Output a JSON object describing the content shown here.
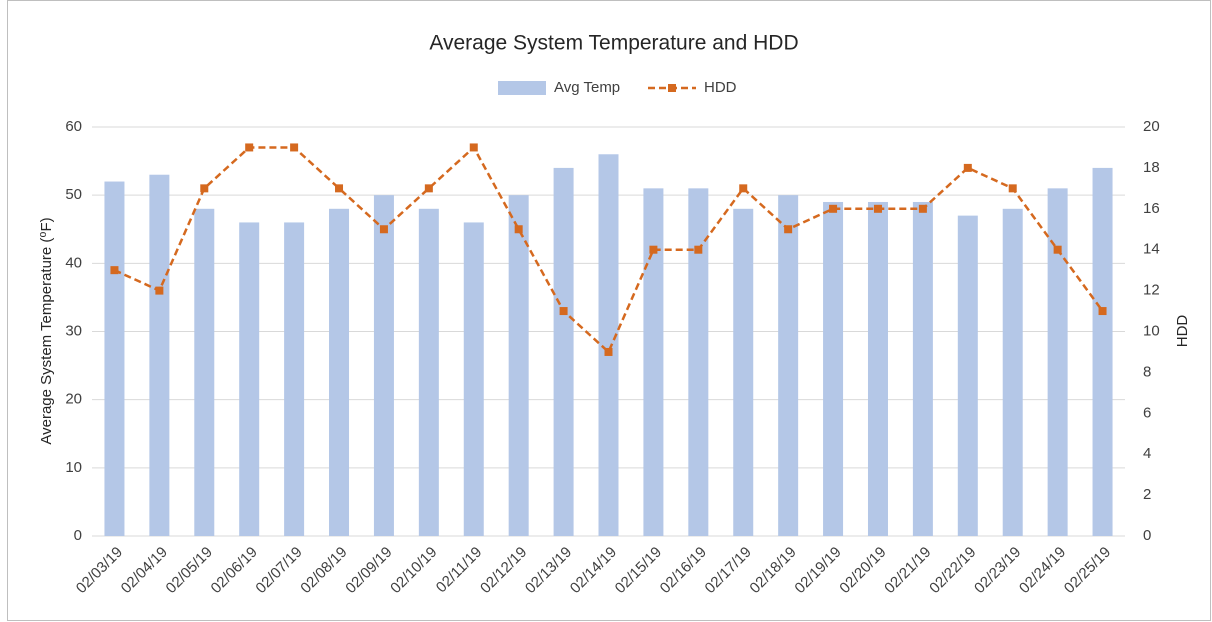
{
  "chart_data": {
    "type": "combo",
    "title": "Average System Temperature and HDD",
    "y_label": "Average System Temperature (⁰F)",
    "y2_label": "HDD",
    "categories": [
      "02/03/19",
      "02/04/19",
      "02/05/19",
      "02/06/19",
      "02/07/19",
      "02/08/19",
      "02/09/19",
      "02/10/19",
      "02/11/19",
      "02/12/19",
      "02/13/19",
      "02/14/19",
      "02/15/19",
      "02/16/19",
      "02/17/19",
      "02/18/19",
      "02/19/19",
      "02/20/19",
      "02/21/19",
      "02/22/19",
      "02/23/19",
      "02/24/19",
      "02/25/19"
    ],
    "series": [
      {
        "name": "Avg Temp",
        "type": "bar",
        "color": "#b4c7e7",
        "values": [
          52,
          53,
          48,
          46,
          46,
          48,
          50,
          48,
          46,
          50,
          54,
          56,
          51,
          51,
          48,
          50,
          49,
          49,
          49,
          47,
          48,
          51,
          54
        ]
      },
      {
        "name": "HDD",
        "type": "line",
        "axis": "y2",
        "color": "#d5691f",
        "line_style": "dashed",
        "marker": "square",
        "values": [
          13,
          12,
          17,
          19,
          19,
          17,
          15,
          17,
          19,
          15,
          11,
          9,
          14,
          14,
          17,
          15,
          16,
          16,
          16,
          18,
          17,
          14,
          11
        ]
      }
    ],
    "ylim": [
      0,
      60
    ],
    "yticks": [
      0,
      10,
      20,
      30,
      40,
      50,
      60
    ],
    "y2lim": [
      0,
      20
    ],
    "y2ticks": [
      0,
      2,
      4,
      6,
      8,
      10,
      12,
      14,
      16,
      18,
      20
    ],
    "grid": true,
    "legend": "top"
  }
}
